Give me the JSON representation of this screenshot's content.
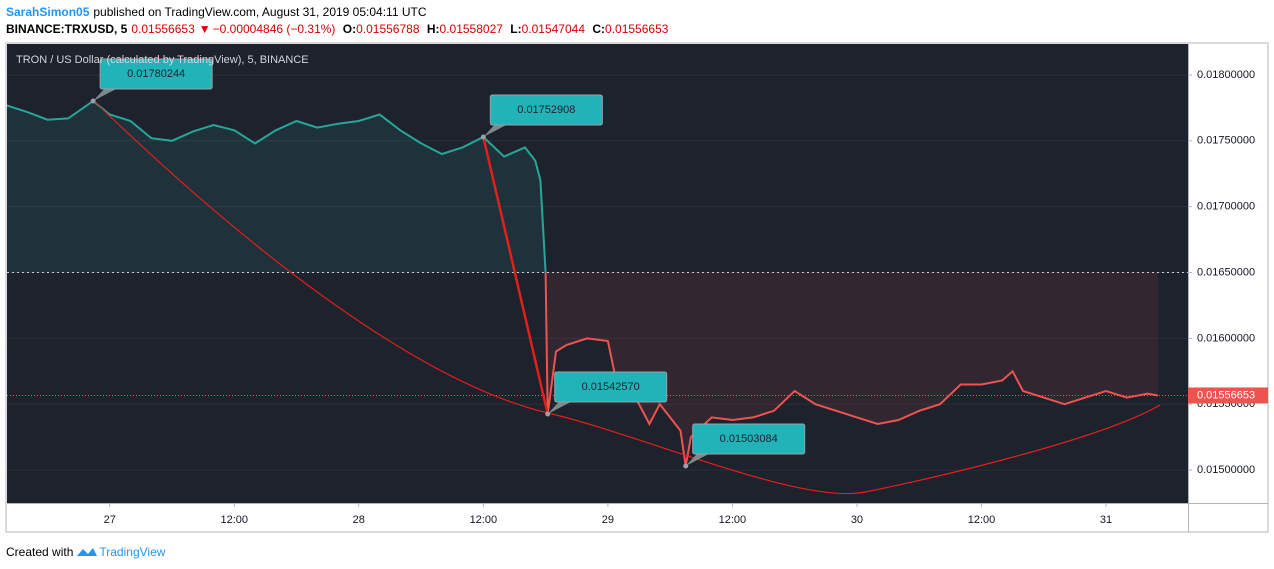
{
  "header": {
    "author": "SarahSimon05",
    "published": "published on TradingView.com, August 31, 2019 05:04:11 UTC",
    "symbol": "BINANCE:TRXUSD, 5",
    "last": "0.01556653",
    "change": "−0.00004846 (−0.31%)",
    "ohlc": [
      {
        "key": "O:",
        "value": "0.01556788"
      },
      {
        "key": "H:",
        "value": "0.01558027"
      },
      {
        "key": "L:",
        "value": "0.01547044"
      },
      {
        "key": "C:",
        "value": "0.01556653"
      }
    ]
  },
  "footer": {
    "created": "Created with",
    "brand": "TradingView"
  },
  "chart_data": {
    "type": "line",
    "title": "TRON / US Dollar (calculated by TradingView), 5, BINANCE",
    "x": [
      -10,
      -8,
      -6,
      -4,
      -1.6,
      0,
      2,
      4,
      6,
      8,
      10,
      12,
      14,
      16,
      18,
      20,
      22,
      24,
      26,
      28,
      30,
      32,
      34,
      36,
      38,
      40,
      41,
      41.5,
      42,
      42.2,
      43,
      44,
      46,
      48,
      49,
      50,
      51,
      52,
      53,
      55,
      55.5,
      56,
      58,
      60,
      62,
      64,
      66,
      68,
      70,
      72,
      74,
      76,
      78,
      80,
      82,
      84,
      86,
      87,
      88,
      90,
      92,
      94,
      96,
      98,
      100,
      101
    ],
    "series": [
      {
        "name": "TRXUSD",
        "color_up": "#26a69a",
        "color_down": "#ef5350",
        "values": [
          0.01777,
          0.01772,
          0.01766,
          0.01767,
          0.01780244,
          0.0177,
          0.01765,
          0.01752,
          0.0175,
          0.01757,
          0.01762,
          0.01758,
          0.01748,
          0.01758,
          0.01765,
          0.0176,
          0.01763,
          0.01765,
          0.0177,
          0.01758,
          0.01748,
          0.0174,
          0.01745,
          0.01752908,
          0.01738,
          0.01745,
          0.01735,
          0.0172,
          0.0165,
          0.0154257,
          0.0159,
          0.01595,
          0.016,
          0.01598,
          0.0156,
          0.01565,
          0.0155,
          0.01535,
          0.0155,
          0.0153,
          0.01503084,
          0.01525,
          0.0154,
          0.01538,
          0.0154,
          0.01545,
          0.0156,
          0.0155,
          0.01545,
          0.0154,
          0.01535,
          0.01538,
          0.01545,
          0.0155,
          0.01565,
          0.01565,
          0.01568,
          0.01575,
          0.0156,
          0.01555,
          0.0155,
          0.01555,
          0.0156,
          0.01555,
          0.01558,
          0.01556653
        ]
      }
    ],
    "baseline": 0.0165,
    "last_price": {
      "value": 0.01556653,
      "label": "0.01556653"
    },
    "annotations": [
      {
        "x": -1.6,
        "value": 0.01780244,
        "label": "0.01780244"
      },
      {
        "x": 36,
        "value": 0.01752908,
        "label": "0.01752908"
      },
      {
        "x": 42.2,
        "value": 0.0154257,
        "label": "0.01542570"
      },
      {
        "x": 55.5,
        "value": 0.01503084,
        "label": "0.01503084"
      }
    ],
    "xlim": [
      -9.9,
      103.9
    ],
    "xticks": [
      {
        "value": 0,
        "label": "27"
      },
      {
        "value": 12,
        "label": "12:00"
      },
      {
        "value": 24,
        "label": "28"
      },
      {
        "value": 36,
        "label": "12:00"
      },
      {
        "value": 48,
        "label": "29"
      },
      {
        "value": 60,
        "label": "12:00"
      },
      {
        "value": 72,
        "label": "30"
      },
      {
        "value": 84,
        "label": "12:00"
      },
      {
        "value": 96,
        "label": "31"
      }
    ],
    "ylim": [
      0.01475,
      0.018235
    ],
    "yticks": [
      {
        "value": 0.015,
        "label": "0.01500000"
      },
      {
        "value": 0.0155,
        "label": "0.01550000"
      },
      {
        "value": 0.016,
        "label": "0.01600000"
      },
      {
        "value": 0.0165,
        "label": "0.01650000"
      },
      {
        "value": 0.017,
        "label": "0.01700000"
      },
      {
        "value": 0.0175,
        "label": "0.01750000"
      },
      {
        "value": 0.018,
        "label": "0.01800000"
      }
    ],
    "grid": true
  }
}
